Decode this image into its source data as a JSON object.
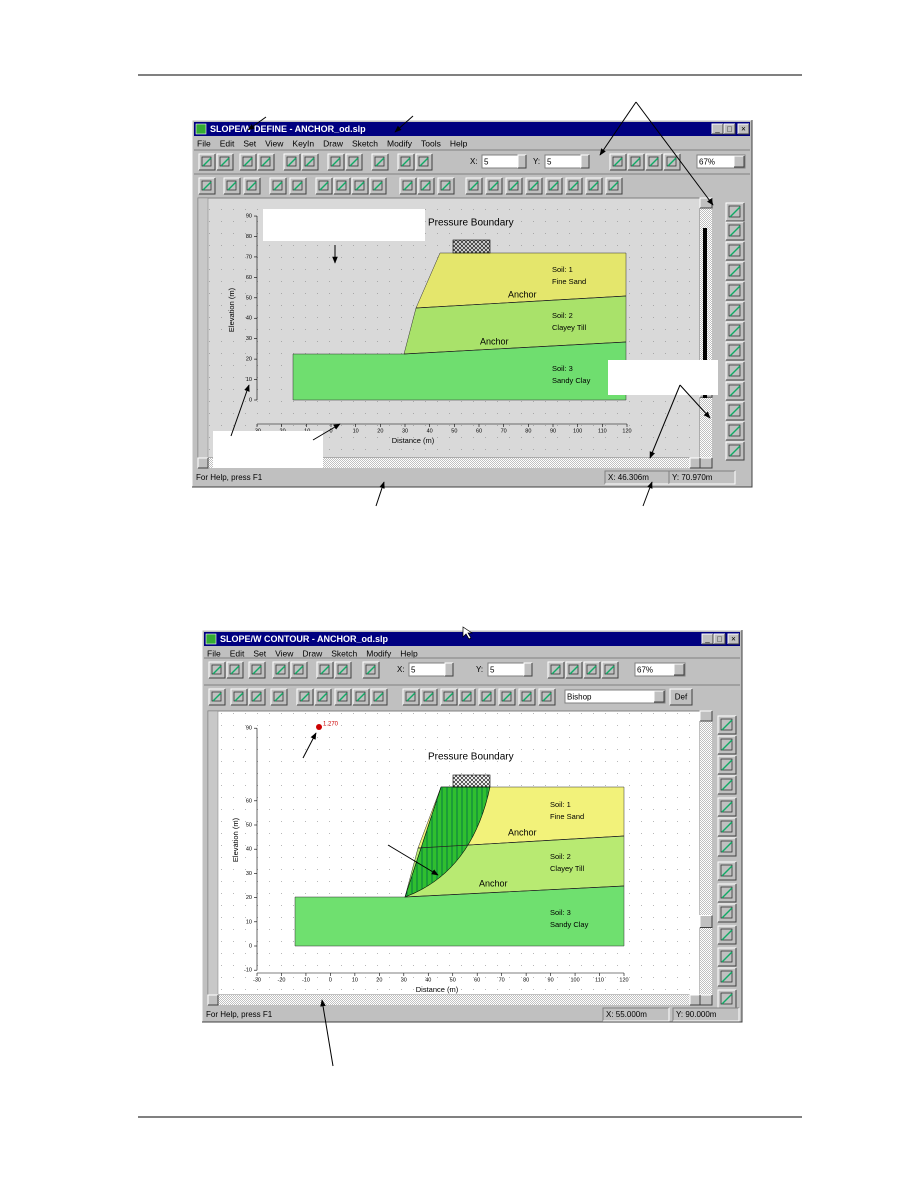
{
  "windows": [
    {
      "title": "SLOPE/W DEFINE - ANCHOR_od.slp",
      "menu": [
        "File",
        "Edit",
        "Set",
        "View",
        "KeyIn",
        "Draw",
        "Sketch",
        "Modify",
        "Tools",
        "Help"
      ],
      "toolbar": {
        "x_label": "X:",
        "x_value": "5",
        "y_label": "Y:",
        "y_value": "5",
        "zoom": "67%"
      },
      "drawing": {
        "annotation": "Pressure Boundary",
        "soils": [
          {
            "name": "Soil: 1",
            "material": "Fine Sand"
          },
          {
            "name": "Soil: 2",
            "material": "Clayey Till"
          },
          {
            "name": "Soil: 3",
            "material": "Sandy Clay"
          }
        ],
        "anchors": [
          "Anchor",
          "Anchor"
        ],
        "y_axis_label": "Elevation (m)",
        "x_axis_label": "Distance (m)",
        "y_ticks": [
          90,
          80,
          70,
          60,
          50,
          40,
          30,
          20,
          10,
          0
        ],
        "x_ticks": [
          -30,
          -20,
          -10,
          0,
          10,
          20,
          30,
          40,
          50,
          60,
          70,
          80,
          90,
          100,
          110,
          120
        ]
      },
      "status": {
        "help": "For Help, press F1",
        "x": "X: 46.306m",
        "y": "Y: 70.970m"
      }
    },
    {
      "title": "SLOPE/W CONTOUR - ANCHOR_od.slp",
      "menu": [
        "File",
        "Edit",
        "Set",
        "View",
        "Draw",
        "Sketch",
        "Modify",
        "Help"
      ],
      "toolbar": {
        "x_label": "X:",
        "x_value": "5",
        "y_label": "Y:",
        "y_value": "5",
        "zoom": "67%",
        "method": "Bishop",
        "def_button": "Def"
      },
      "drawing": {
        "annotation": "Pressure Boundary",
        "factor_of_safety": "1.270",
        "soils": [
          {
            "name": "Soil: 1",
            "material": "Fine Sand"
          },
          {
            "name": "Soil: 2",
            "material": "Clayey Till"
          },
          {
            "name": "Soil: 3",
            "material": "Sandy Clay"
          }
        ],
        "anchors": [
          "Anchor",
          "Anchor"
        ],
        "y_axis_label": "Elevation (m)",
        "x_axis_label": "Distance (m)",
        "y_ticks": [
          90,
          60,
          50,
          40,
          30,
          20,
          10,
          0,
          -10
        ],
        "x_ticks": [
          -30,
          -20,
          -10,
          0,
          10,
          20,
          30,
          40,
          50,
          60,
          70,
          80,
          90,
          100,
          110,
          120
        ]
      },
      "status": {
        "help": "For Help, press F1",
        "x": "X: 55.000m",
        "y": "Y: 90.000m"
      }
    }
  ]
}
